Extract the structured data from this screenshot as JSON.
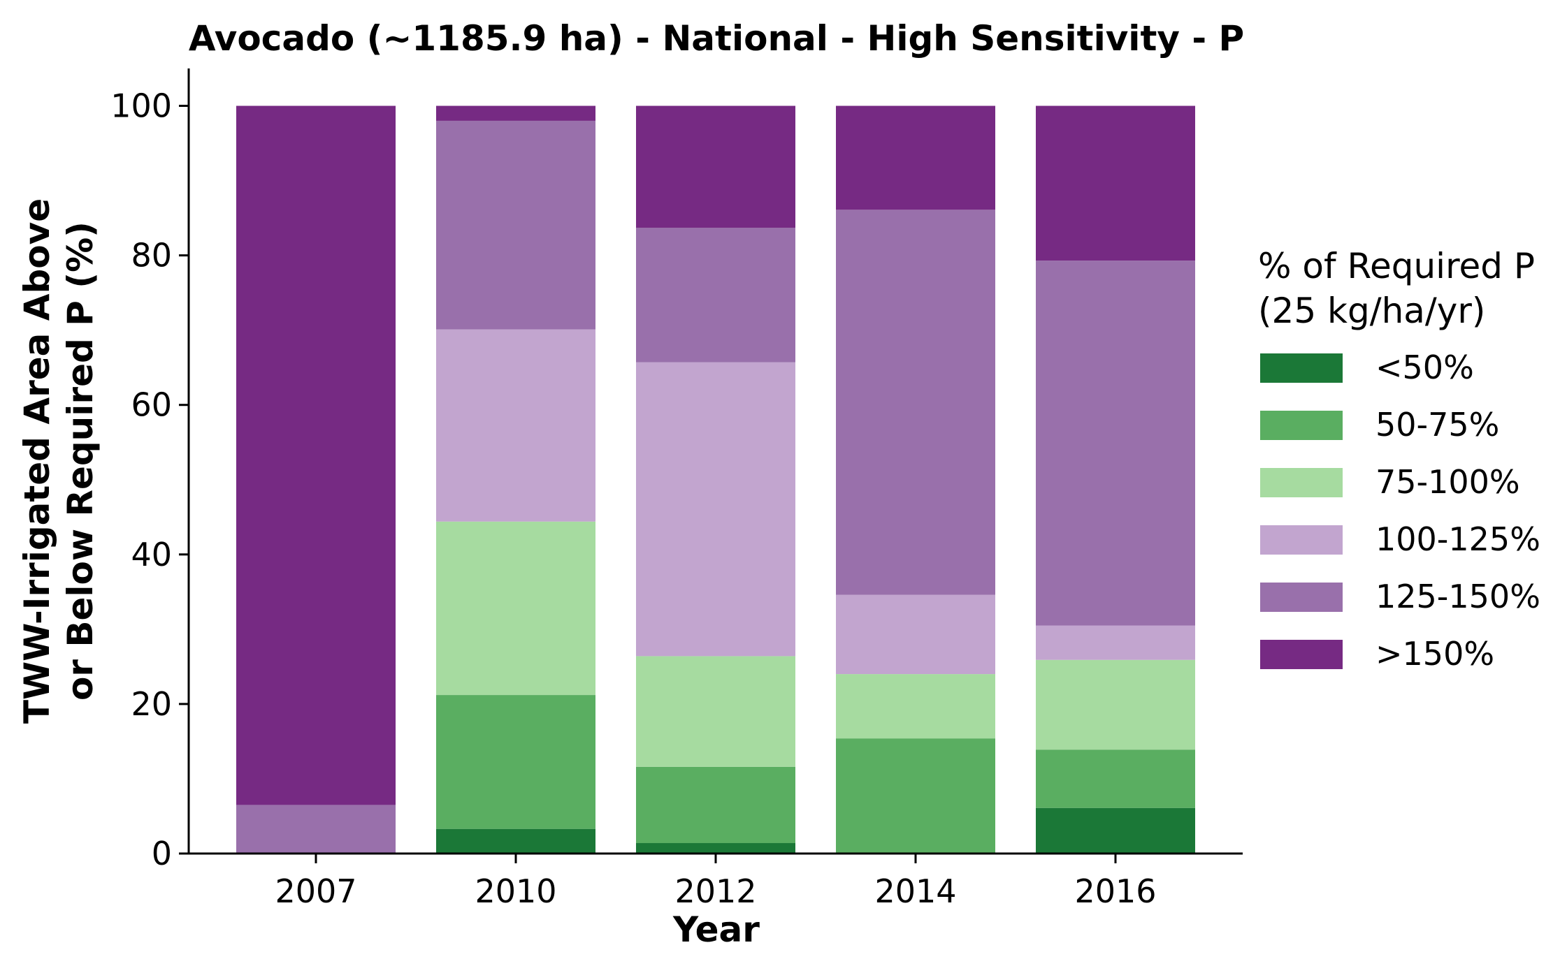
{
  "chart_data": {
    "type": "bar",
    "stacked": true,
    "title": "Avocado (~1185.9 ha) - National - High Sensitivity - P",
    "xlabel": "Year",
    "ylabel": "TWW-Irrigated Area Above or Below Required P (%)",
    "ylabel_lines": [
      "TWW-Irrigated Area Above",
      "or Below Required P (%)"
    ],
    "categories": [
      "2007",
      "2010",
      "2012",
      "2014",
      "2016"
    ],
    "ylim": [
      0,
      105
    ],
    "yticks": [
      0,
      20,
      40,
      60,
      80,
      100
    ],
    "grid": false,
    "legend": {
      "title_lines": [
        "% of Required P",
        "(25 kg/ha/yr)"
      ],
      "position": "right"
    },
    "series": [
      {
        "name": "<50%",
        "color": "#1b7837",
        "values": [
          0,
          3.3,
          1.4,
          0,
          6.1
        ]
      },
      {
        "name": "50-75%",
        "color": "#5aae61",
        "values": [
          0,
          17.9,
          10.2,
          15.4,
          7.8
        ]
      },
      {
        "name": "75-100%",
        "color": "#a6dba0",
        "values": [
          0,
          23.2,
          14.8,
          8.6,
          12.0
        ]
      },
      {
        "name": "100-125%",
        "color": "#c2a5cf",
        "values": [
          0,
          25.7,
          39.3,
          10.6,
          4.6
        ]
      },
      {
        "name": "125-150%",
        "color": "#9970ab",
        "values": [
          6.5,
          27.9,
          18.0,
          51.5,
          48.8
        ]
      },
      {
        "name": ">150%",
        "color": "#762a83",
        "values": [
          93.5,
          2.0,
          16.3,
          13.9,
          20.7
        ]
      }
    ]
  }
}
